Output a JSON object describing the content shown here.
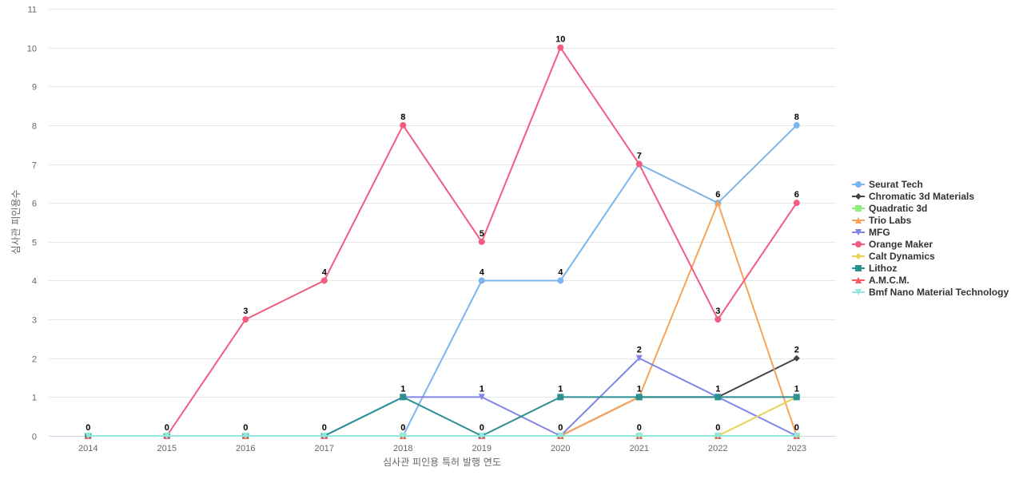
{
  "chart_data": {
    "type": "line",
    "xlabel": "심사관 피인용 특허 발행 연도",
    "ylabel": "심사관 피인용수",
    "x": [
      "2014",
      "2015",
      "2016",
      "2017",
      "2018",
      "2019",
      "2020",
      "2021",
      "2022",
      "2023"
    ],
    "ylim": [
      0,
      11
    ],
    "yticks": [
      0,
      1,
      2,
      3,
      4,
      5,
      6,
      7,
      8,
      9,
      10,
      11
    ],
    "grid": true,
    "legend_position": "right",
    "series": [
      {
        "name": "Seurat Tech",
        "color": "#7cb5ec",
        "marker": "circle",
        "values": [
          0,
          0,
          0,
          0,
          0,
          4,
          4,
          7,
          6,
          8
        ]
      },
      {
        "name": "Chromatic 3d Materials",
        "color": "#434348",
        "marker": "diamond",
        "values": [
          0,
          0,
          0,
          0,
          0,
          0,
          0,
          1,
          1,
          2
        ]
      },
      {
        "name": "Quadratic 3d",
        "color": "#90ed7d",
        "marker": "square",
        "values": [
          0,
          0,
          0,
          0,
          0,
          0,
          0,
          0,
          0,
          0
        ]
      },
      {
        "name": "Trio Labs",
        "color": "#f7a35c",
        "marker": "triangle",
        "values": [
          0,
          0,
          0,
          0,
          0,
          0,
          0,
          1,
          6,
          0
        ]
      },
      {
        "name": "MFG",
        "color": "#8085e9",
        "marker": "triangle-down",
        "values": [
          0,
          0,
          0,
          0,
          1,
          1,
          0,
          2,
          1,
          0
        ]
      },
      {
        "name": "Orange Maker",
        "color": "#f15c80",
        "marker": "circle",
        "values": [
          0,
          0,
          3,
          4,
          8,
          5,
          10,
          7,
          3,
          6
        ]
      },
      {
        "name": "Calt Dynamics",
        "color": "#e4d354",
        "marker": "diamond",
        "values": [
          0,
          0,
          0,
          0,
          0,
          0,
          0,
          0,
          0,
          1
        ]
      },
      {
        "name": "Lithoz",
        "color": "#2b908f",
        "marker": "square",
        "values": [
          0,
          0,
          0,
          0,
          1,
          0,
          1,
          1,
          1,
          1
        ]
      },
      {
        "name": "A.M.C.M.",
        "color": "#f45b5b",
        "marker": "triangle",
        "values": [
          0,
          0,
          0,
          0,
          0,
          0,
          0,
          0,
          0,
          0
        ]
      },
      {
        "name": "Bmf Nano Material Technology",
        "color": "#91e8e1",
        "marker": "triangle-down",
        "values": [
          0,
          0,
          0,
          0,
          0,
          0,
          0,
          0,
          0,
          0
        ]
      }
    ],
    "data_labels": [
      {
        "x": "2014",
        "value": 0
      },
      {
        "x": "2015",
        "value": 0
      },
      {
        "x": "2016",
        "value": 0
      },
      {
        "x": "2016",
        "value": 3
      },
      {
        "x": "2017",
        "value": 0
      },
      {
        "x": "2017",
        "value": 4
      },
      {
        "x": "2018",
        "value": 0
      },
      {
        "x": "2018",
        "value": 1
      },
      {
        "x": "2018",
        "value": 8
      },
      {
        "x": "2019",
        "value": 0
      },
      {
        "x": "2019",
        "value": 1
      },
      {
        "x": "2019",
        "value": 4
      },
      {
        "x": "2019",
        "value": 5
      },
      {
        "x": "2020",
        "value": 0
      },
      {
        "x": "2020",
        "value": 1
      },
      {
        "x": "2020",
        "value": 4
      },
      {
        "x": "2020",
        "value": 10
      },
      {
        "x": "2021",
        "value": 0
      },
      {
        "x": "2021",
        "value": 1
      },
      {
        "x": "2021",
        "value": 2
      },
      {
        "x": "2021",
        "value": 7
      },
      {
        "x": "2022",
        "value": 0
      },
      {
        "x": "2022",
        "value": 1
      },
      {
        "x": "2022",
        "value": 3
      },
      {
        "x": "2022",
        "value": 6
      },
      {
        "x": "2023",
        "value": 0
      },
      {
        "x": "2023",
        "value": 1
      },
      {
        "x": "2023",
        "value": 2
      },
      {
        "x": "2023",
        "value": 6
      },
      {
        "x": "2023",
        "value": 8
      }
    ]
  }
}
